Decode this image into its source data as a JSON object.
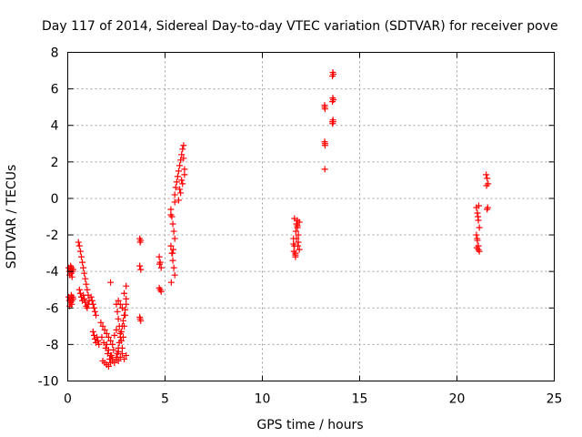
{
  "chart_data": {
    "type": "scatter",
    "title": "Day 117 of 2014, Sidereal Day-to-day VTEC variation (SDTVAR) for receiver pove",
    "xlabel": "GPS time / hours",
    "ylabel": "SDTVAR / TECUs",
    "xlim": [
      0,
      25
    ],
    "ylim": [
      -10,
      8
    ],
    "xticks": [
      0,
      5,
      10,
      15,
      20,
      25
    ],
    "yticks": [
      -10,
      -8,
      -6,
      -4,
      -2,
      0,
      2,
      4,
      6,
      8
    ],
    "xtick_labels": [
      "0",
      "5",
      "10",
      "15",
      "20",
      "25"
    ],
    "ytick_labels": [
      "-10",
      "-8",
      "-6",
      "-4",
      "-2",
      "0",
      "2",
      "4",
      "6",
      "8"
    ],
    "grid": true,
    "marker": "+",
    "color": "#ff0000",
    "series": [
      {
        "name": "SDTVAR",
        "x": [
          0.05,
          0.08,
          0.1,
          0.12,
          0.15,
          0.18,
          0.2,
          0.22,
          0.25,
          0.28,
          0.05,
          0.08,
          0.1,
          0.12,
          0.15,
          0.18,
          0.2,
          0.22,
          0.25,
          0.28,
          0.55,
          0.6,
          0.65,
          0.7,
          0.75,
          0.8,
          0.85,
          0.9,
          0.95,
          1.0,
          1.05,
          1.1,
          0.6,
          0.65,
          0.7,
          0.75,
          0.8,
          0.85,
          0.9,
          0.95,
          1.0,
          1.05,
          1.2,
          1.25,
          1.3,
          1.35,
          1.4,
          1.45,
          1.3,
          1.35,
          1.4,
          1.45,
          1.5,
          1.55,
          1.6,
          1.7,
          1.8,
          1.9,
          2.0,
          2.1,
          2.2,
          2.3,
          2.4,
          2.5,
          1.75,
          1.85,
          1.95,
          2.05,
          2.15,
          2.25,
          2.35,
          1.8,
          1.9,
          2.0,
          2.1,
          2.2,
          2.3,
          2.0,
          2.1,
          2.2,
          2.3,
          2.4,
          2.5,
          2.6,
          2.2,
          2.5,
          2.55,
          2.6,
          2.65,
          2.7,
          2.75,
          2.8,
          2.85,
          2.9,
          2.95,
          3.0,
          2.5,
          2.55,
          2.6,
          2.65,
          2.7,
          2.75,
          2.8,
          2.85,
          2.9,
          2.95,
          3.0,
          2.6,
          2.7,
          2.8,
          2.9,
          3.0,
          2.6,
          2.7,
          2.8,
          2.9,
          3.0,
          3.7,
          3.75,
          3.7,
          3.75,
          3.7,
          3.75,
          3.72,
          3.72,
          4.7,
          4.75,
          4.8,
          4.7,
          4.75,
          4.8,
          4.72,
          5.3,
          5.35,
          5.4,
          5.45,
          5.5,
          5.3,
          5.35,
          5.4,
          5.45,
          5.5,
          5.32,
          5.42,
          5.5,
          5.3,
          5.38,
          5.5,
          5.55,
          5.6,
          5.65,
          5.7,
          5.75,
          5.8,
          5.85,
          5.9,
          5.95,
          6.0,
          5.7,
          5.8,
          5.9,
          6.0,
          5.75,
          5.85,
          5.95,
          11.6,
          11.65,
          11.7,
          11.75,
          11.8,
          11.85,
          11.9,
          11.6,
          11.7,
          11.8,
          11.9,
          11.65,
          11.75,
          11.85,
          11.62,
          11.72,
          11.82,
          11.7,
          11.8,
          13.2,
          13.22,
          13.2,
          13.22,
          13.21,
          13.2,
          13.22,
          13.6,
          13.62,
          13.65,
          13.6,
          13.62,
          13.65,
          13.6,
          13.63,
          13.61,
          13.64,
          21.0,
          21.05,
          21.1,
          21.15,
          21.0,
          21.05,
          21.1,
          21.15,
          21.02,
          21.08,
          21.12,
          21.04,
          21.1,
          21.5,
          21.55,
          21.6,
          21.52,
          21.58,
          21.55
        ],
        "y": [
          -3.8,
          -4.0,
          -4.2,
          -3.9,
          -3.7,
          -4.1,
          -3.8,
          -4.3,
          -4.0,
          -3.9,
          -5.4,
          -5.6,
          -5.9,
          -5.5,
          -5.7,
          -5.3,
          -5.8,
          -5.6,
          -5.4,
          -5.5,
          -2.4,
          -2.6,
          -2.9,
          -3.2,
          -3.5,
          -3.8,
          -4.1,
          -4.4,
          -4.7,
          -5.0,
          -5.3,
          -5.6,
          -5.0,
          -5.2,
          -5.4,
          -5.6,
          -5.3,
          -5.5,
          -5.7,
          -5.9,
          -6.0,
          -5.8,
          -5.4,
          -5.6,
          -5.8,
          -6.0,
          -6.2,
          -6.4,
          -7.3,
          -7.5,
          -7.7,
          -7.9,
          -7.6,
          -7.8,
          -8.0,
          -6.8,
          -7.0,
          -7.2,
          -7.4,
          -7.6,
          -7.8,
          -8.0,
          -7.5,
          -7.2,
          -7.6,
          -7.9,
          -8.2,
          -8.5,
          -8.8,
          -8.6,
          -8.3,
          -8.9,
          -9.0,
          -9.1,
          -9.2,
          -9.0,
          -8.8,
          -8.0,
          -8.3,
          -8.6,
          -8.9,
          -9.0,
          -8.7,
          -8.4,
          -4.6,
          -5.8,
          -6.2,
          -6.6,
          -7.0,
          -7.4,
          -7.8,
          -8.2,
          -7.6,
          -7.0,
          -6.4,
          -5.8,
          -8.8,
          -8.5,
          -8.2,
          -7.9,
          -7.6,
          -7.3,
          -7.0,
          -6.7,
          -6.4,
          -6.1,
          -5.5,
          -5.6,
          -5.8,
          -6.0,
          -5.2,
          -4.8,
          -8.9,
          -8.7,
          -8.5,
          -8.8,
          -8.6,
          -2.2,
          -2.3,
          -3.7,
          -3.9,
          -6.5,
          -6.7,
          -2.4,
          -6.6,
          -3.2,
          -3.5,
          -3.8,
          -4.9,
          -5.0,
          -5.1,
          -3.6,
          -0.6,
          -1.0,
          -1.4,
          -1.8,
          -2.2,
          -2.6,
          -3.0,
          -3.4,
          -3.8,
          -4.2,
          -4.6,
          -2.8,
          -0.2,
          -0.9,
          -3.0,
          0.2,
          0.6,
          0.9,
          1.2,
          1.5,
          1.8,
          2.1,
          2.4,
          2.7,
          2.9,
          1.6,
          -0.1,
          0.3,
          0.8,
          1.3,
          0.5,
          1.0,
          2.2,
          -2.2,
          -2.6,
          -3.0,
          -1.4,
          -1.2,
          -2.4,
          -2.8,
          -2.5,
          -3.1,
          -1.6,
          -1.3,
          -1.1,
          -2.2,
          -2.0,
          -2.9,
          -1.8,
          -2.6,
          -3.2,
          -1.5,
          5.1,
          4.9,
          3.1,
          2.9,
          1.6,
          5.0,
          3.0,
          6.7,
          6.9,
          6.8,
          5.3,
          5.5,
          5.4,
          4.2,
          4.3,
          4.1,
          4.2,
          -0.5,
          -0.8,
          -1.2,
          -1.6,
          -2.0,
          -2.3,
          -2.6,
          -2.9,
          -2.7,
          -1.0,
          -0.4,
          -2.2,
          -2.8,
          1.3,
          1.1,
          0.8,
          0.7,
          -0.5,
          -0.6
        ]
      }
    ]
  }
}
